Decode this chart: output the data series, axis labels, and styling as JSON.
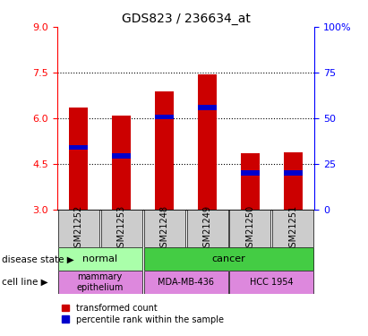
{
  "title": "GDS823 / 236634_at",
  "samples": [
    "GSM21252",
    "GSM21253",
    "GSM21248",
    "GSM21249",
    "GSM21250",
    "GSM21251"
  ],
  "bar_bottoms": [
    3,
    3,
    3,
    3,
    3,
    3
  ],
  "bar_tops": [
    6.35,
    6.1,
    6.9,
    7.45,
    4.85,
    4.9
  ],
  "percentile_values": [
    5.05,
    4.78,
    6.05,
    6.35,
    4.22,
    4.22
  ],
  "ylim": [
    3,
    9
  ],
  "yticks_left": [
    3,
    4.5,
    6,
    7.5,
    9
  ],
  "yticks_right": [
    0,
    25,
    50,
    75,
    100
  ],
  "bar_color": "#cc0000",
  "percentile_color": "#0000cc",
  "bar_width": 0.45,
  "normal_color": "#aaffaa",
  "cancer_color": "#44cc44",
  "cell_color": "#dd88dd",
  "legend_red_label": "transformed count",
  "legend_blue_label": "percentile rank within the sample",
  "disease_state_label": "disease state",
  "cell_line_label": "cell line",
  "normal_label": "normal",
  "cancer_label": "cancer",
  "mammary_label": "mammary\nepithelium",
  "mda_label": "MDA-MB-436",
  "hcc_label": "HCC 1954",
  "sample_box_color": "#cccccc"
}
